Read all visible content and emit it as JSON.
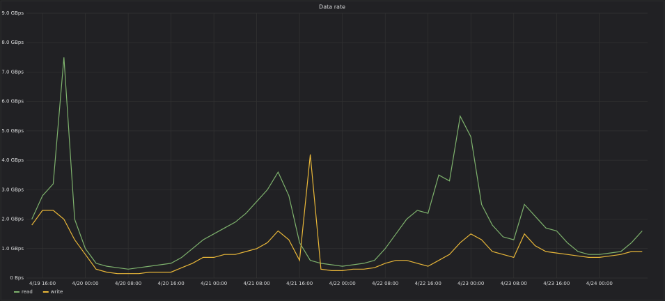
{
  "chart_data": {
    "type": "line",
    "title": "Data rate",
    "categories": [
      null,
      "4/19 16:00",
      null,
      null,
      null,
      "4/20 00:00",
      null,
      null,
      null,
      "4/20 08:00",
      null,
      null,
      null,
      "4/20 16:00",
      null,
      null,
      null,
      "4/21 00:00",
      null,
      null,
      null,
      "4/21 08:00",
      null,
      null,
      null,
      "4/21 16:00",
      null,
      null,
      null,
      "4/22 00:00",
      null,
      null,
      null,
      "4/22 08:00",
      null,
      null,
      null,
      "4/22 16:00",
      null,
      null,
      null,
      "4/23 00:00",
      null,
      null,
      null,
      "4/23 08:00",
      null,
      null,
      null,
      "4/23 16:00",
      null,
      null,
      null,
      "4/24 00:00",
      null,
      null,
      null,
      null
    ],
    "series": [
      {
        "name": "read",
        "color": "#7eb26d",
        "values": [
          2.0,
          2.8,
          3.2,
          7.5,
          2.0,
          1.0,
          0.5,
          0.4,
          0.35,
          0.3,
          0.35,
          0.4,
          0.45,
          0.5,
          0.7,
          1.0,
          1.3,
          1.5,
          1.7,
          1.9,
          2.2,
          2.6,
          3.0,
          3.6,
          2.8,
          1.2,
          0.6,
          0.5,
          0.45,
          0.4,
          0.45,
          0.5,
          0.6,
          1.0,
          1.5,
          2.0,
          2.3,
          2.2,
          3.5,
          3.3,
          5.5,
          4.8,
          2.5,
          1.8,
          1.4,
          1.3,
          2.5,
          2.1,
          1.7,
          1.6,
          1.2,
          0.9,
          0.8,
          0.8,
          0.85,
          0.9,
          1.2,
          1.6
        ]
      },
      {
        "name": "write",
        "color": "#eab839",
        "values": [
          1.8,
          2.3,
          2.3,
          2.0,
          1.3,
          0.8,
          0.3,
          0.2,
          0.15,
          0.15,
          0.15,
          0.2,
          0.2,
          0.2,
          0.35,
          0.5,
          0.7,
          0.7,
          0.8,
          0.8,
          0.9,
          1.0,
          1.2,
          1.6,
          1.3,
          0.6,
          4.2,
          0.3,
          0.25,
          0.25,
          0.3,
          0.3,
          0.35,
          0.5,
          0.6,
          0.6,
          0.5,
          0.4,
          0.6,
          0.8,
          1.2,
          1.5,
          1.3,
          0.9,
          0.8,
          0.7,
          1.5,
          1.1,
          0.9,
          0.85,
          0.8,
          0.75,
          0.7,
          0.7,
          0.75,
          0.8,
          0.9,
          0.9
        ]
      }
    ],
    "ylim": [
      0,
      9
    ],
    "yticks": [
      {
        "value": 0,
        "label": "0 Bps"
      },
      {
        "value": 1,
        "label": "1.0 GBps"
      },
      {
        "value": 2,
        "label": "2.0 GBps"
      },
      {
        "value": 3,
        "label": "3.0 GBps"
      },
      {
        "value": 4,
        "label": "4.0 GBps"
      },
      {
        "value": 5,
        "label": "5.0 GBps"
      },
      {
        "value": 6,
        "label": "6.0 GBps"
      },
      {
        "value": 7,
        "label": "7.0 GBps"
      },
      {
        "value": 8,
        "label": "8.0 GBps"
      },
      {
        "value": 9,
        "label": "9.0 GBps"
      }
    ],
    "grid": true,
    "legend": "bottom-left"
  }
}
